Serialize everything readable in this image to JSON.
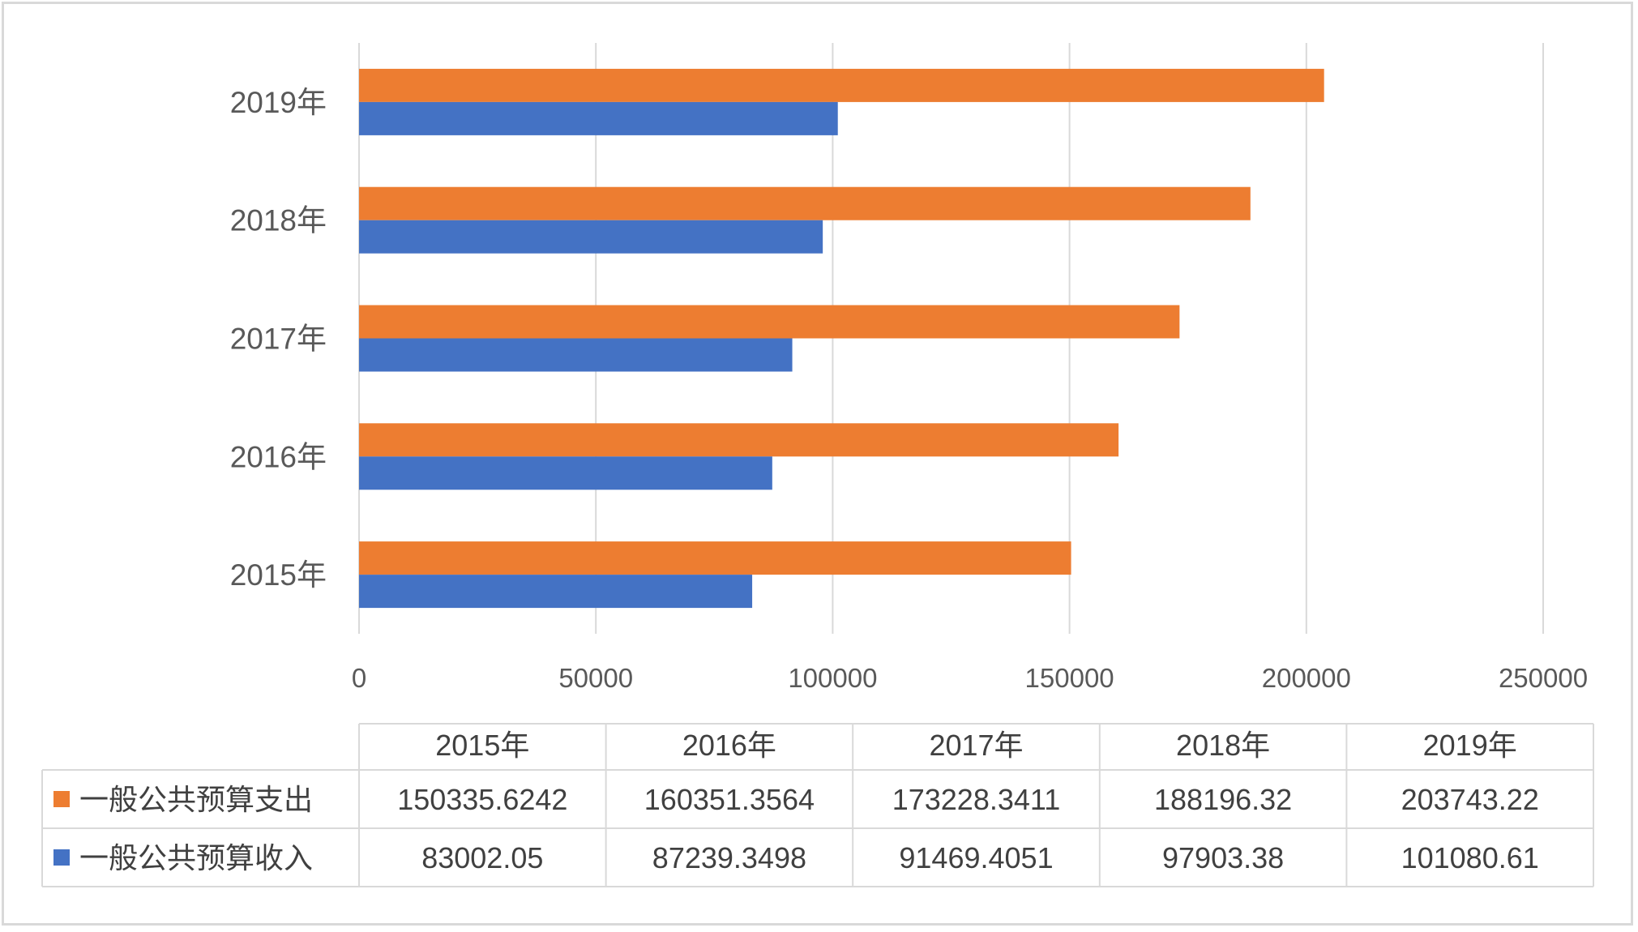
{
  "chart_data": {
    "type": "bar",
    "orientation": "horizontal",
    "categories": [
      "2015年",
      "2016年",
      "2017年",
      "2018年",
      "2019年"
    ],
    "series": [
      {
        "name": "一般公共预算支出",
        "color": "#ED7D31",
        "values": [
          150335.6242,
          160351.3564,
          173228.3411,
          188196.32,
          203743.22
        ],
        "labels": [
          "150335.6242",
          "160351.3564",
          "173228.3411",
          "188196.32",
          "203743.22"
        ]
      },
      {
        "name": "一般公共预算收入",
        "color": "#4472C4",
        "values": [
          83002.05,
          87239.3498,
          91469.4051,
          97903.38,
          101080.61
        ],
        "labels": [
          "83002.05",
          "87239.3498",
          "91469.4051",
          "97903.38",
          "101080.61"
        ]
      }
    ],
    "xlim": [
      0,
      250000
    ],
    "xticks": [
      "0",
      "50000",
      "100000",
      "150000",
      "200000",
      "250000"
    ],
    "grid": "vertical",
    "legend": "data-table",
    "data_table": true
  }
}
